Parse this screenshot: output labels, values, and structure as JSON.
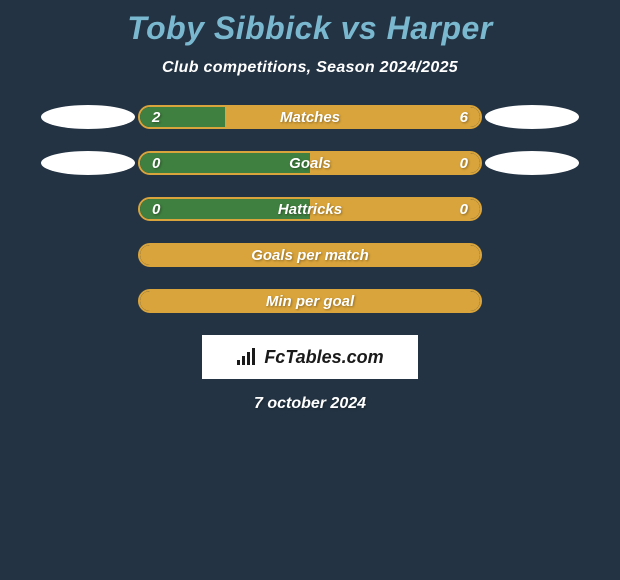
{
  "background_color": "#233343",
  "title": {
    "text": "Toby Sibbick vs Harper",
    "color": "#7ab8d0",
    "fontsize": 32
  },
  "subtitle": {
    "text": "Club competitions, Season 2024/2025",
    "color": "#ffffff",
    "fontsize": 16
  },
  "avatar_color": "#ffffff",
  "player_left_color": "#3f7f3f",
  "player_right_color": "#d9a43b",
  "label_color": "#ffffff",
  "value_color": "#ffffff",
  "bar_border": "#d9a43b",
  "bar_inner_bg": "#233343",
  "stats": [
    {
      "label": "Matches",
      "left_value": "2",
      "right_value": "6",
      "left_num": 2,
      "right_num": 6,
      "show_avatars": true
    },
    {
      "label": "Goals",
      "left_value": "0",
      "right_value": "0",
      "left_num": 0,
      "right_num": 0,
      "show_avatars": true
    },
    {
      "label": "Hattricks",
      "left_value": "0",
      "right_value": "0",
      "left_num": 0,
      "right_num": 0,
      "show_avatars": false
    },
    {
      "label": "Goals per match",
      "left_value": "",
      "right_value": "",
      "left_num": 0,
      "right_num": 0,
      "show_avatars": false,
      "empty_bar": true
    },
    {
      "label": "Min per goal",
      "left_value": "",
      "right_value": "",
      "left_num": 0,
      "right_num": 0,
      "show_avatars": false,
      "empty_bar": true
    }
  ],
  "logo": {
    "text": "FcTables.com",
    "background": "#ffffff",
    "color": "#1a1a1a"
  },
  "date": {
    "text": "7 october 2024",
    "color": "#ffffff"
  }
}
